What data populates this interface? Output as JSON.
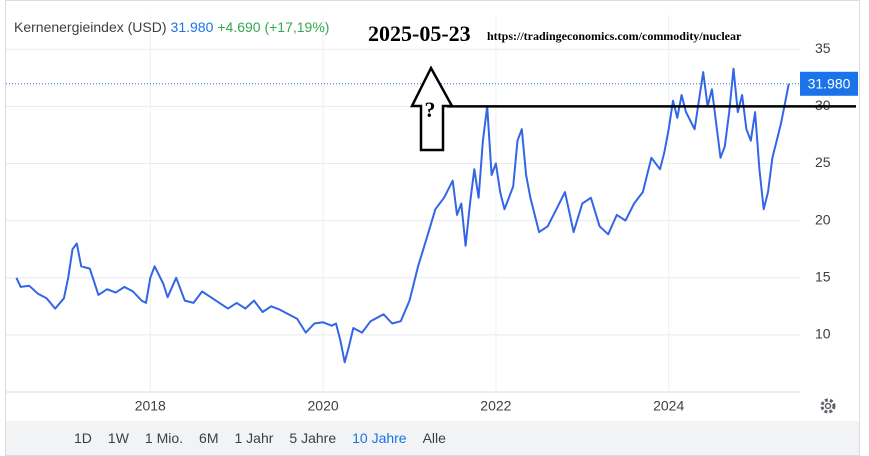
{
  "chart_data": {
    "type": "line",
    "name": "Kernenergieindex (USD)",
    "price": "31.980",
    "change": "+4.690 (+17,19%)",
    "annotation_date": "2025-05-23",
    "annotation_url": "https://tradingeconomics.com/commodity/nuclear",
    "annotation_mark": "?",
    "reference_line": 30,
    "color": "#3366e6",
    "grid": true,
    "xlim": [
      2016.33,
      2025.52
    ],
    "xticks": [
      2018,
      2020,
      2022,
      2024
    ],
    "ylim": [
      5,
      38
    ],
    "yticks": [
      10,
      15,
      20,
      25,
      30,
      35
    ],
    "x": [
      2016.45,
      2016.5,
      2016.6,
      2016.7,
      2016.8,
      2016.9,
      2017.0,
      2017.05,
      2017.1,
      2017.15,
      2017.2,
      2017.3,
      2017.4,
      2017.5,
      2017.6,
      2017.7,
      2017.8,
      2017.9,
      2017.95,
      2018.0,
      2018.05,
      2018.15,
      2018.2,
      2018.3,
      2018.4,
      2018.5,
      2018.6,
      2018.7,
      2018.8,
      2018.9,
      2019.0,
      2019.1,
      2019.2,
      2019.3,
      2019.4,
      2019.5,
      2019.6,
      2019.7,
      2019.8,
      2019.9,
      2020.0,
      2020.1,
      2020.15,
      2020.2,
      2020.25,
      2020.3,
      2020.35,
      2020.45,
      2020.55,
      2020.7,
      2020.8,
      2020.9,
      2021.0,
      2021.05,
      2021.1,
      2021.2,
      2021.3,
      2021.4,
      2021.5,
      2021.55,
      2021.6,
      2021.65,
      2021.7,
      2021.75,
      2021.8,
      2021.85,
      2021.9,
      2021.95,
      2022.0,
      2022.05,
      2022.1,
      2022.2,
      2022.25,
      2022.3,
      2022.35,
      2022.4,
      2022.5,
      2022.6,
      2022.7,
      2022.8,
      2022.9,
      2023.0,
      2023.1,
      2023.2,
      2023.3,
      2023.4,
      2023.5,
      2023.6,
      2023.7,
      2023.8,
      2023.9,
      2023.95,
      2024.0,
      2024.05,
      2024.1,
      2024.15,
      2024.2,
      2024.3,
      2024.35,
      2024.4,
      2024.45,
      2024.5,
      2024.55,
      2024.6,
      2024.65,
      2024.7,
      2024.75,
      2024.8,
      2024.85,
      2024.9,
      2024.95,
      2025.0,
      2025.05,
      2025.1,
      2025.15,
      2025.2,
      2025.25,
      2025.3,
      2025.39
    ],
    "values": [
      15.0,
      14.2,
      14.3,
      13.6,
      13.2,
      12.3,
      13.2,
      15.0,
      17.5,
      18.0,
      16.0,
      15.8,
      13.5,
      14.0,
      13.7,
      14.2,
      13.8,
      13.0,
      12.8,
      15.0,
      16.0,
      14.5,
      13.3,
      15.0,
      13.0,
      12.8,
      13.8,
      13.3,
      12.8,
      12.3,
      12.8,
      12.3,
      13.0,
      12.0,
      12.5,
      12.2,
      11.8,
      11.4,
      10.2,
      11.0,
      11.1,
      10.8,
      11.0,
      9.5,
      7.6,
      9.0,
      10.6,
      10.2,
      11.2,
      11.8,
      11.0,
      11.2,
      13.0,
      14.5,
      16.0,
      18.5,
      21.0,
      22.0,
      23.5,
      20.5,
      21.5,
      17.8,
      21.5,
      24.5,
      22.0,
      27.0,
      30.0,
      24.0,
      25.0,
      22.5,
      21.0,
      23.0,
      27.0,
      28.0,
      24.0,
      22.0,
      19.0,
      19.5,
      21.0,
      22.5,
      19.0,
      21.5,
      22.0,
      19.5,
      18.8,
      20.5,
      20.0,
      21.5,
      22.5,
      25.5,
      24.5,
      26.0,
      28.0,
      30.5,
      29.0,
      31.0,
      29.5,
      28.0,
      30.5,
      33.0,
      30.0,
      31.5,
      28.5,
      25.5,
      26.5,
      29.5,
      33.3,
      29.5,
      31.0,
      28.0,
      27.0,
      29.5,
      24.5,
      21.0,
      22.5,
      25.5,
      27.0,
      28.5,
      31.98
    ],
    "ranges": [
      "1D",
      "1W",
      "1 Mio.",
      "6M",
      "1 Jahr",
      "5 Jahre",
      "10 Jahre",
      "Alle"
    ],
    "active_range": 6
  }
}
